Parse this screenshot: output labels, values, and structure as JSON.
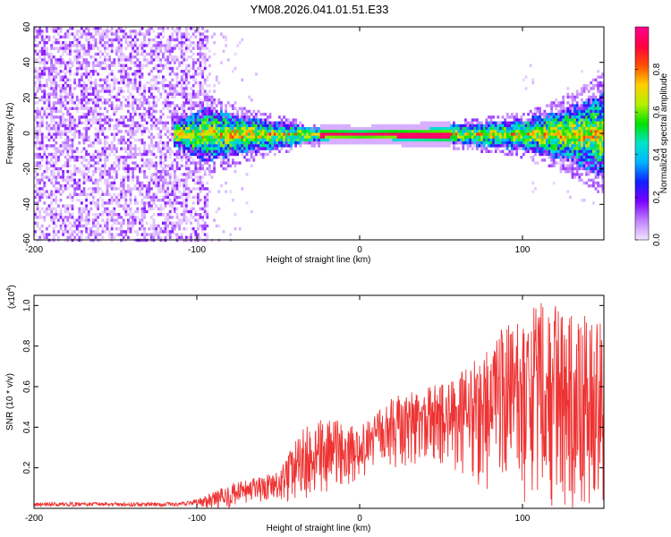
{
  "chart_data": [
    {
      "type": "heatmap",
      "title": "YM08.2026.041.01.51.E33",
      "xlabel": "Height of straight line (km)",
      "ylabel": "Frequency (Hz)",
      "xlim": [
        -200,
        150
      ],
      "ylim": [
        -60,
        60
      ],
      "x_ticks": [
        -200,
        -100,
        0,
        100
      ],
      "x_tick_labels": [
        "-200",
        "-100",
        "0",
        "100"
      ],
      "y_ticks": [
        -60,
        -40,
        -20,
        0,
        20,
        40,
        60
      ],
      "y_tick_labels": [
        "-60",
        "-40",
        "-20",
        "0",
        "20",
        "40",
        "60"
      ],
      "noise_region": {
        "x_start": -200,
        "x_end": -93,
        "fade_end": -60,
        "amplitude": 0.2
      },
      "signal_band": {
        "x_start": -115,
        "x_end": 150,
        "center_frequency": 0,
        "core_amplitude": 1.0,
        "core_x_range": [
          -25,
          55
        ],
        "width_profile_hz": [
          {
            "x": -115,
            "width": 6
          },
          {
            "x": -95,
            "width": 14
          },
          {
            "x": -60,
            "width": 8
          },
          {
            "x": -30,
            "width": 4
          },
          {
            "x": 0,
            "width": 3
          },
          {
            "x": 60,
            "width": 5
          },
          {
            "x": 100,
            "width": 8
          },
          {
            "x": 120,
            "width": 12
          },
          {
            "x": 150,
            "width": 22
          }
        ]
      },
      "colorbar": {
        "label": "Normalized spectral amplitude",
        "range": [
          0.0,
          1.0
        ],
        "ticks": [
          0.0,
          0.2,
          0.4,
          0.6,
          0.8
        ],
        "tick_labels": [
          "0.0",
          "0.2",
          "0.4",
          "0.6",
          "0.8"
        ],
        "colors": [
          "#f2e6ff",
          "#c080ff",
          "#7a00ff",
          "#1020ff",
          "#00b4ff",
          "#00e6c8",
          "#00e000",
          "#b4f000",
          "#ffd000",
          "#ff5000",
          "#ff0040",
          "#ff0090"
        ]
      }
    },
    {
      "type": "line",
      "xlabel": "Height of straight line (km)",
      "ylabel": "SNR (10 * v/v)",
      "y_scale_label": "(x10",
      "y_scale_exponent": "4",
      "y_scale_suffix": ")",
      "xlim": [
        -200,
        150
      ],
      "ylim": [
        0,
        1.05
      ],
      "x_ticks": [
        -200,
        -100,
        0,
        100
      ],
      "x_tick_labels": [
        "-200",
        "-100",
        "0",
        "100"
      ],
      "y_ticks": [
        0.2,
        0.4,
        0.6,
        0.8,
        1.0
      ],
      "y_tick_labels": [
        "0.2",
        "0.4",
        "0.6",
        "0.8",
        "1.0"
      ],
      "series": [
        {
          "name": "SNR",
          "color": "#ee3333",
          "envelope": [
            {
              "x": -200,
              "lower": 0.0,
              "upper": 0.03
            },
            {
              "x": -110,
              "lower": 0.0,
              "upper": 0.03
            },
            {
              "x": -95,
              "lower": 0.0,
              "upper": 0.06
            },
            {
              "x": -80,
              "lower": 0.0,
              "upper": 0.12
            },
            {
              "x": -50,
              "lower": 0.02,
              "upper": 0.18
            },
            {
              "x": -35,
              "lower": 0.02,
              "upper": 0.4
            },
            {
              "x": -20,
              "lower": 0.05,
              "upper": 0.45
            },
            {
              "x": 0,
              "lower": 0.15,
              "upper": 0.4
            },
            {
              "x": 20,
              "lower": 0.2,
              "upper": 0.55
            },
            {
              "x": 40,
              "lower": 0.22,
              "upper": 0.6
            },
            {
              "x": 60,
              "lower": 0.15,
              "upper": 0.65
            },
            {
              "x": 80,
              "lower": 0.05,
              "upper": 0.85
            },
            {
              "x": 100,
              "lower": 0.02,
              "upper": 0.95
            },
            {
              "x": 115,
              "lower": 0.0,
              "upper": 1.05
            },
            {
              "x": 130,
              "lower": 0.0,
              "upper": 0.95
            },
            {
              "x": 150,
              "lower": 0.0,
              "upper": 0.95
            }
          ]
        }
      ]
    }
  ]
}
